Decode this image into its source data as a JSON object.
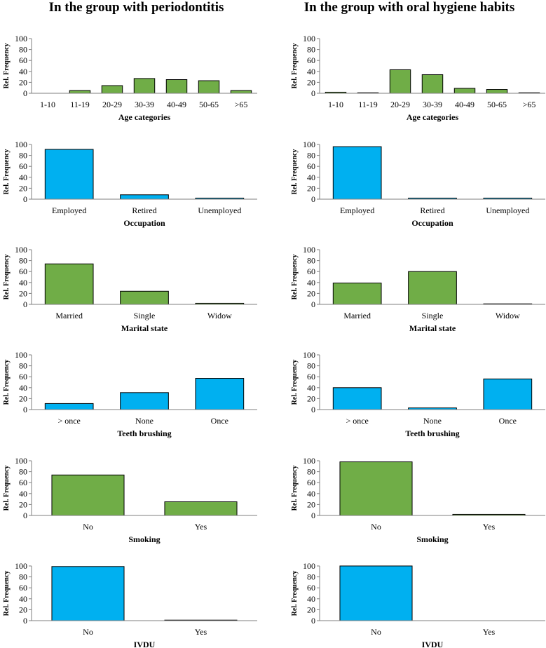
{
  "column_titles": [
    "In the group with periodontitis",
    "In the group with oral hygiene habits"
  ],
  "colors": {
    "green": "#70AD47",
    "blue": "#00B0F0",
    "axis": "#7f7f7f"
  },
  "chart_data": [
    {
      "type": "bar",
      "group": "In the group with periodontitis",
      "xlabel": "Age categories",
      "ylabel": "Rel. Frequency",
      "ylim": [
        0,
        100
      ],
      "yticks": [
        0,
        20,
        40,
        60,
        80,
        100
      ],
      "categories": [
        "1-10",
        "11-19",
        "20-29",
        "30-39",
        "40-49",
        "50-65",
        ">65"
      ],
      "values": [
        0,
        5,
        14,
        27,
        25,
        23,
        5
      ],
      "color": "green"
    },
    {
      "type": "bar",
      "group": "In the group with oral hygiene habits",
      "xlabel": "Age categories",
      "ylabel": "Rel. Frequency",
      "ylim": [
        0,
        100
      ],
      "yticks": [
        0,
        20,
        40,
        60,
        80,
        100
      ],
      "categories": [
        "1-10",
        "11-19",
        "20-29",
        "30-39",
        "40-49",
        "50-65",
        ">65"
      ],
      "values": [
        2,
        1,
        43,
        34,
        9,
        7,
        1
      ],
      "color": "green"
    },
    {
      "type": "bar",
      "group": "In the group with periodontitis",
      "xlabel": "Occupation",
      "ylabel": "Rel. Frequency",
      "ylim": [
        0,
        100
      ],
      "yticks": [
        0,
        20,
        40,
        60,
        80,
        100
      ],
      "categories": [
        "Employed",
        "Retired",
        "Unemployed"
      ],
      "values": [
        91,
        8,
        2
      ],
      "color": "blue"
    },
    {
      "type": "bar",
      "group": "In the group with oral hygiene habits",
      "xlabel": "Occupation",
      "ylabel": "Rel. Frequency",
      "ylim": [
        0,
        100
      ],
      "yticks": [
        0,
        20,
        40,
        60,
        80,
        100
      ],
      "categories": [
        "Employed",
        "Retired",
        "Unemployed"
      ],
      "values": [
        96,
        2,
        2
      ],
      "color": "blue"
    },
    {
      "type": "bar",
      "group": "In the group with periodontitis",
      "xlabel": "Marital state",
      "ylabel": "Rel. Frequency",
      "ylim": [
        0,
        100
      ],
      "yticks": [
        0,
        20,
        40,
        60,
        80,
        100
      ],
      "categories": [
        "Married",
        "Single",
        "Widow"
      ],
      "values": [
        74,
        24,
        2
      ],
      "color": "green"
    },
    {
      "type": "bar",
      "group": "In the group with oral hygiene habits",
      "xlabel": "Marital state",
      "ylabel": "Rel. Frequency",
      "ylim": [
        0,
        100
      ],
      "yticks": [
        0,
        20,
        40,
        60,
        80,
        100
      ],
      "categories": [
        "Married",
        "Single",
        "Widow"
      ],
      "values": [
        39,
        60,
        1
      ],
      "color": "green"
    },
    {
      "type": "bar",
      "group": "In the group with periodontitis",
      "xlabel": "Teeth brushing",
      "ylabel": "Rel. Frequency",
      "ylim": [
        0,
        100
      ],
      "yticks": [
        0,
        20,
        40,
        60,
        80,
        100
      ],
      "categories": [
        "> once",
        "None",
        "Once"
      ],
      "values": [
        11,
        31,
        57
      ],
      "color": "blue"
    },
    {
      "type": "bar",
      "group": "In the group with oral hygiene habits",
      "xlabel": "Teeth brushing",
      "ylabel": "Rel. Frequency",
      "ylim": [
        0,
        100
      ],
      "yticks": [
        0,
        20,
        40,
        60,
        80,
        100
      ],
      "categories": [
        "> once",
        "None",
        "Once"
      ],
      "values": [
        40,
        3,
        56
      ],
      "color": "blue"
    },
    {
      "type": "bar",
      "group": "In the group with periodontitis",
      "xlabel": "Smoking",
      "ylabel": "Rel. Frequency",
      "ylim": [
        0,
        100
      ],
      "yticks": [
        0,
        20,
        40,
        60,
        80,
        100
      ],
      "categories": [
        "No",
        "Yes"
      ],
      "values": [
        74,
        25
      ],
      "color": "green"
    },
    {
      "type": "bar",
      "group": "In the group with oral hygiene habits",
      "xlabel": "Smoking",
      "ylabel": "Rel. Frequency",
      "ylim": [
        0,
        100
      ],
      "yticks": [
        0,
        20,
        40,
        60,
        80,
        100
      ],
      "categories": [
        "No",
        "Yes"
      ],
      "values": [
        98,
        2
      ],
      "color": "green"
    },
    {
      "type": "bar",
      "group": "In the group with periodontitis",
      "xlabel": "IVDU",
      "ylabel": "Rel. Frequency",
      "ylim": [
        0,
        100
      ],
      "yticks": [
        0,
        20,
        40,
        60,
        80,
        100
      ],
      "categories": [
        "No",
        "Yes"
      ],
      "values": [
        99,
        1
      ],
      "color": "blue"
    },
    {
      "type": "bar",
      "group": "In the group with oral hygiene habits",
      "xlabel": "IVDU",
      "ylabel": "Rel. Frequency",
      "ylim": [
        0,
        100
      ],
      "yticks": [
        0,
        20,
        40,
        60,
        80,
        100
      ],
      "categories": [
        "No",
        "Yes"
      ],
      "values": [
        100,
        0
      ],
      "color": "blue"
    }
  ]
}
